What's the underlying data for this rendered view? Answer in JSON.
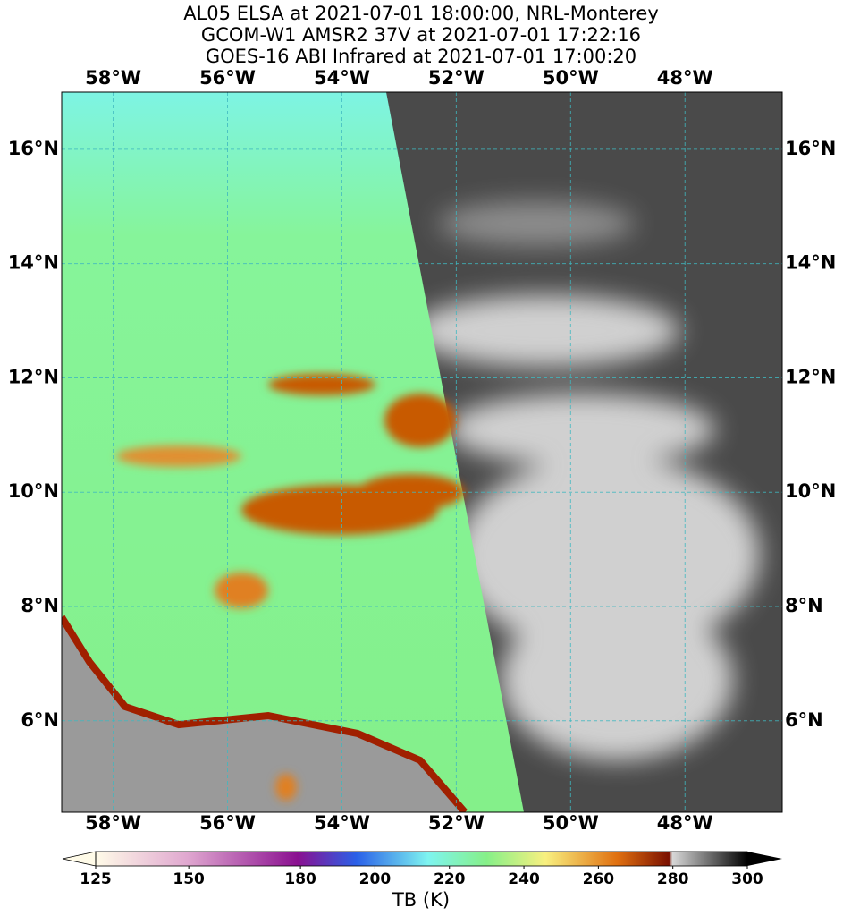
{
  "chart_data": {
    "type": "map",
    "title_lines": [
      "AL05 ELSA at 2021-07-01 18:00:00, NRL-Monterey",
      "GCOM-W1 AMSR2 37V at 2021-07-01 17:22:16",
      "GOES-16 ABI Infrared at 2021-07-01 17:00:20"
    ],
    "xlim": [
      -58.9,
      -46.3
    ],
    "ylim": [
      4.4,
      17
    ],
    "xticks": [
      {
        "value": -58,
        "label": "58°W"
      },
      {
        "value": -56,
        "label": "56°W"
      },
      {
        "value": -54,
        "label": "54°W"
      },
      {
        "value": -52,
        "label": "52°W"
      },
      {
        "value": -50,
        "label": "50°W"
      },
      {
        "value": -48,
        "label": "48°W"
      }
    ],
    "yticks": [
      {
        "value": 6,
        "label": "6°N"
      },
      {
        "value": 8,
        "label": "8°N"
      },
      {
        "value": 10,
        "label": "10°N"
      },
      {
        "value": 12,
        "label": "12°N"
      },
      {
        "value": 14,
        "label": "14°N"
      },
      {
        "value": 16,
        "label": "16°N"
      }
    ],
    "grid": true,
    "grid_color": "#3fb8c0",
    "colorbar": {
      "label": "TB (K)",
      "lim": [
        125,
        300
      ],
      "ticks": [
        125,
        150,
        180,
        200,
        220,
        240,
        260,
        280,
        300
      ]
    }
  }
}
